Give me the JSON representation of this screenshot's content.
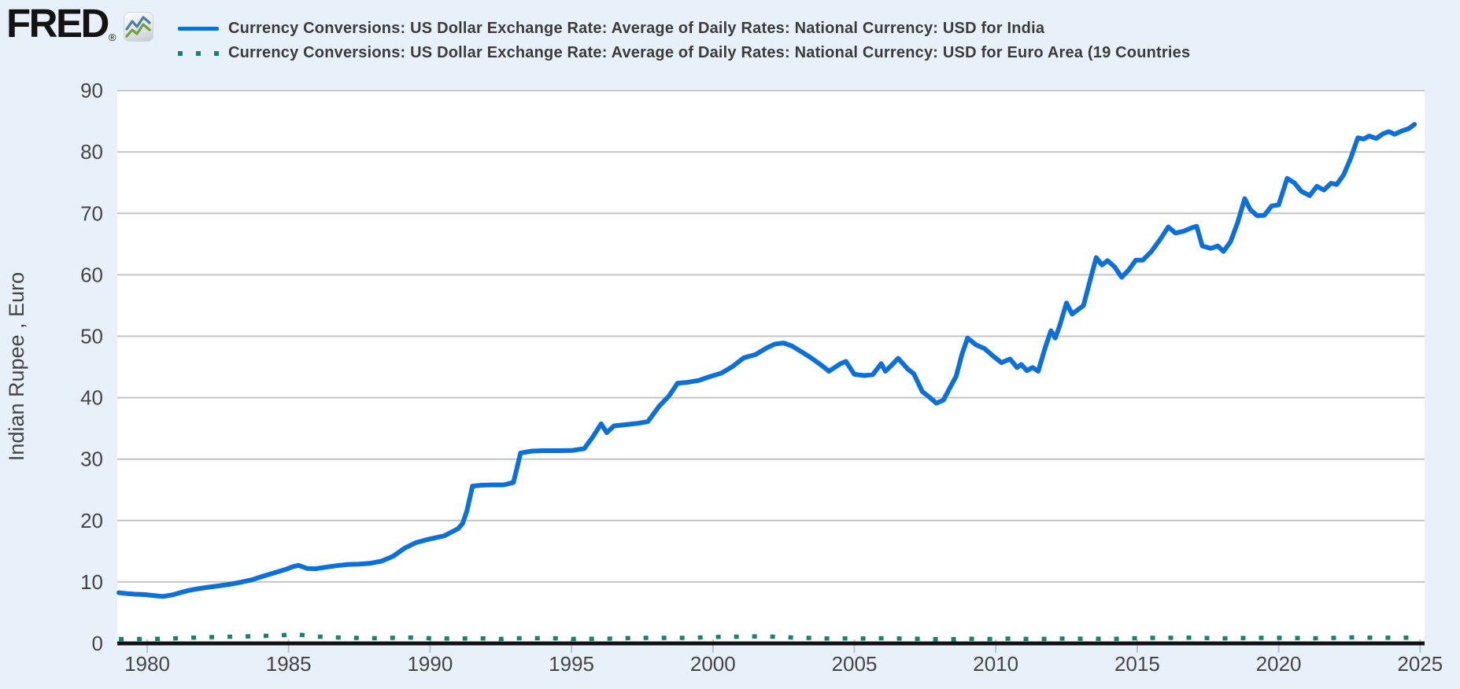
{
  "header": {
    "logo_text": "FRED",
    "registered_mark": "®"
  },
  "legend": {
    "items": [
      {
        "label": "Currency Conversions: US Dollar Exchange Rate: Average of Daily Rates: National Currency: USD for India",
        "color": "#0d6fd8",
        "line_style": "solid"
      },
      {
        "label": "Currency Conversions: US Dollar Exchange Rate: Average of Daily Rates: National Currency: USD for Euro Area (19 Countries",
        "color": "#1e7e72",
        "line_style": "dotted"
      }
    ]
  },
  "colors": {
    "background": "#e8f1f9",
    "plot_background": "#ffffff",
    "gridline": "#c4c4c4",
    "axis_line": "#121212",
    "tick_mark": "#b5c4d6",
    "tick_label": "#454545",
    "legend_text": "#3b3b3b",
    "logo_icon_blue": "#4a80a8",
    "logo_icon_green": "#6fa13d",
    "india_line": "#0d6fd8",
    "euro_line": "#1e7e72"
  },
  "chart_data": {
    "type": "line",
    "title": "",
    "xlabel": "",
    "ylabel": "Indian Rupee , Euro",
    "xlim": [
      1978.9,
      2025.1
    ],
    "ylim": [
      0,
      90
    ],
    "x_ticks": [
      1980,
      1985,
      1990,
      1995,
      2000,
      2005,
      2010,
      2015,
      2020,
      2025
    ],
    "y_ticks": [
      0,
      10,
      20,
      30,
      40,
      50,
      60,
      70,
      80,
      90
    ],
    "grid": true,
    "legend_position": "top-left",
    "series": [
      {
        "name": "USD for India",
        "color": "#0d6fd8",
        "style": "solid",
        "points": [
          [
            1979.0,
            8.25
          ],
          [
            1979.3,
            8.1
          ],
          [
            1979.6,
            8.0
          ],
          [
            1979.9,
            7.95
          ],
          [
            1980.2,
            7.8
          ],
          [
            1980.55,
            7.65
          ],
          [
            1980.9,
            7.9
          ],
          [
            1981.2,
            8.3
          ],
          [
            1981.5,
            8.65
          ],
          [
            1981.8,
            8.9
          ],
          [
            1982.1,
            9.1
          ],
          [
            1982.5,
            9.35
          ],
          [
            1982.9,
            9.6
          ],
          [
            1983.3,
            9.95
          ],
          [
            1983.7,
            10.35
          ],
          [
            1984.1,
            10.95
          ],
          [
            1984.5,
            11.5
          ],
          [
            1984.9,
            12.05
          ],
          [
            1985.15,
            12.5
          ],
          [
            1985.35,
            12.7
          ],
          [
            1985.65,
            12.2
          ],
          [
            1985.95,
            12.15
          ],
          [
            1986.3,
            12.4
          ],
          [
            1986.7,
            12.65
          ],
          [
            1987.1,
            12.85
          ],
          [
            1987.5,
            12.9
          ],
          [
            1987.9,
            13.05
          ],
          [
            1988.3,
            13.4
          ],
          [
            1988.7,
            14.2
          ],
          [
            1989.1,
            15.5
          ],
          [
            1989.5,
            16.4
          ],
          [
            1990.0,
            17.0
          ],
          [
            1990.5,
            17.5
          ],
          [
            1991.0,
            18.7
          ],
          [
            1991.15,
            19.5
          ],
          [
            1991.3,
            21.5
          ],
          [
            1991.5,
            25.6
          ],
          [
            1991.8,
            25.75
          ],
          [
            1992.2,
            25.8
          ],
          [
            1992.6,
            25.8
          ],
          [
            1992.95,
            26.2
          ],
          [
            1993.2,
            31.0
          ],
          [
            1993.6,
            31.3
          ],
          [
            1994.0,
            31.37
          ],
          [
            1994.5,
            31.37
          ],
          [
            1995.0,
            31.4
          ],
          [
            1995.45,
            31.7
          ],
          [
            1995.75,
            33.6
          ],
          [
            1996.05,
            35.75
          ],
          [
            1996.25,
            34.3
          ],
          [
            1996.5,
            35.4
          ],
          [
            1996.9,
            35.6
          ],
          [
            1997.3,
            35.8
          ],
          [
            1997.7,
            36.1
          ],
          [
            1998.1,
            38.6
          ],
          [
            1998.45,
            40.3
          ],
          [
            1998.75,
            42.35
          ],
          [
            1999.1,
            42.5
          ],
          [
            1999.5,
            42.8
          ],
          [
            1999.9,
            43.45
          ],
          [
            2000.3,
            44.0
          ],
          [
            2000.7,
            45.1
          ],
          [
            2001.1,
            46.5
          ],
          [
            2001.5,
            47.0
          ],
          [
            2001.9,
            48.1
          ],
          [
            2002.2,
            48.75
          ],
          [
            2002.5,
            48.9
          ],
          [
            2002.8,
            48.4
          ],
          [
            2003.1,
            47.55
          ],
          [
            2003.45,
            46.55
          ],
          [
            2003.8,
            45.4
          ],
          [
            2004.1,
            44.3
          ],
          [
            2004.5,
            45.5
          ],
          [
            2004.7,
            45.9
          ],
          [
            2005.0,
            43.8
          ],
          [
            2005.35,
            43.6
          ],
          [
            2005.65,
            43.75
          ],
          [
            2005.95,
            45.55
          ],
          [
            2006.1,
            44.3
          ],
          [
            2006.3,
            45.2
          ],
          [
            2006.55,
            46.4
          ],
          [
            2006.9,
            44.6
          ],
          [
            2007.1,
            43.9
          ],
          [
            2007.4,
            41.0
          ],
          [
            2007.65,
            40.1
          ],
          [
            2007.9,
            39.1
          ],
          [
            2008.15,
            39.6
          ],
          [
            2008.4,
            41.8
          ],
          [
            2008.6,
            43.5
          ],
          [
            2008.8,
            47.0
          ],
          [
            2009.0,
            49.7
          ],
          [
            2009.3,
            48.6
          ],
          [
            2009.6,
            48.0
          ],
          [
            2009.9,
            46.8
          ],
          [
            2010.2,
            45.7
          ],
          [
            2010.5,
            46.3
          ],
          [
            2010.75,
            44.9
          ],
          [
            2010.9,
            45.4
          ],
          [
            2011.1,
            44.4
          ],
          [
            2011.3,
            44.9
          ],
          [
            2011.5,
            44.3
          ],
          [
            2011.75,
            48.2
          ],
          [
            2011.95,
            50.9
          ],
          [
            2012.1,
            49.7
          ],
          [
            2012.25,
            51.6
          ],
          [
            2012.5,
            55.4
          ],
          [
            2012.7,
            53.6
          ],
          [
            2012.9,
            54.3
          ],
          [
            2013.1,
            55.0
          ],
          [
            2013.3,
            58.5
          ],
          [
            2013.55,
            62.8
          ],
          [
            2013.75,
            61.6
          ],
          [
            2013.95,
            62.3
          ],
          [
            2014.2,
            61.3
          ],
          [
            2014.45,
            59.6
          ],
          [
            2014.7,
            60.8
          ],
          [
            2014.95,
            62.4
          ],
          [
            2015.2,
            62.4
          ],
          [
            2015.5,
            63.8
          ],
          [
            2015.8,
            65.7
          ],
          [
            2016.1,
            67.8
          ],
          [
            2016.35,
            66.8
          ],
          [
            2016.65,
            67.1
          ],
          [
            2016.95,
            67.7
          ],
          [
            2017.1,
            67.9
          ],
          [
            2017.3,
            64.7
          ],
          [
            2017.6,
            64.3
          ],
          [
            2017.85,
            64.7
          ],
          [
            2018.05,
            63.8
          ],
          [
            2018.3,
            65.4
          ],
          [
            2018.55,
            68.5
          ],
          [
            2018.8,
            72.4
          ],
          [
            2019.0,
            70.6
          ],
          [
            2019.25,
            69.6
          ],
          [
            2019.5,
            69.7
          ],
          [
            2019.75,
            71.2
          ],
          [
            2020.0,
            71.4
          ],
          [
            2020.3,
            75.7
          ],
          [
            2020.55,
            75.0
          ],
          [
            2020.8,
            73.6
          ],
          [
            2021.1,
            72.9
          ],
          [
            2021.35,
            74.4
          ],
          [
            2021.6,
            73.8
          ],
          [
            2021.85,
            74.9
          ],
          [
            2022.05,
            74.7
          ],
          [
            2022.3,
            76.3
          ],
          [
            2022.55,
            79.0
          ],
          [
            2022.8,
            82.3
          ],
          [
            2023.0,
            82.1
          ],
          [
            2023.2,
            82.6
          ],
          [
            2023.45,
            82.2
          ],
          [
            2023.7,
            83.0
          ],
          [
            2023.9,
            83.3
          ],
          [
            2024.1,
            82.9
          ],
          [
            2024.35,
            83.4
          ],
          [
            2024.6,
            83.8
          ],
          [
            2024.8,
            84.5
          ]
        ]
      },
      {
        "name": "USD for Euro Area (19 Countries)",
        "color": "#1e7e72",
        "style": "dotted",
        "points": [
          [
            1979.0,
            0.7
          ],
          [
            1979.5,
            0.72
          ],
          [
            1980.0,
            0.72
          ],
          [
            1980.5,
            0.74
          ],
          [
            1981.0,
            0.82
          ],
          [
            1981.5,
            0.92
          ],
          [
            1982.0,
            0.99
          ],
          [
            1982.5,
            1.04
          ],
          [
            1983.0,
            1.09
          ],
          [
            1983.5,
            1.14
          ],
          [
            1984.0,
            1.19
          ],
          [
            1984.5,
            1.27
          ],
          [
            1985.0,
            1.4
          ],
          [
            1985.25,
            1.47
          ],
          [
            1985.6,
            1.3
          ],
          [
            1986.0,
            1.1
          ],
          [
            1986.5,
            1.01
          ],
          [
            1987.0,
            0.92
          ],
          [
            1987.5,
            0.88
          ],
          [
            1988.0,
            0.84
          ],
          [
            1988.5,
            0.88
          ],
          [
            1989.0,
            0.93
          ],
          [
            1989.5,
            0.95
          ],
          [
            1990.0,
            0.83
          ],
          [
            1990.5,
            0.79
          ],
          [
            1991.0,
            0.77
          ],
          [
            1991.5,
            0.84
          ],
          [
            1992.0,
            0.79
          ],
          [
            1992.5,
            0.72
          ],
          [
            1993.0,
            0.83
          ],
          [
            1993.5,
            0.86
          ],
          [
            1994.0,
            0.85
          ],
          [
            1994.5,
            0.82
          ],
          [
            1995.0,
            0.73
          ],
          [
            1995.5,
            0.72
          ],
          [
            1996.0,
            0.77
          ],
          [
            1996.5,
            0.78
          ],
          [
            1997.0,
            0.86
          ],
          [
            1997.5,
            0.9
          ],
          [
            1998.0,
            0.9
          ],
          [
            1998.5,
            0.89
          ],
          [
            1999.0,
            0.89
          ],
          [
            1999.5,
            0.95
          ],
          [
            2000.0,
            1.02
          ],
          [
            2000.5,
            1.09
          ],
          [
            2001.0,
            1.08
          ],
          [
            2001.5,
            1.14
          ],
          [
            2002.0,
            1.12
          ],
          [
            2002.5,
            1.0
          ],
          [
            2003.0,
            0.92
          ],
          [
            2003.5,
            0.87
          ],
          [
            2004.0,
            0.8
          ],
          [
            2004.5,
            0.82
          ],
          [
            2005.0,
            0.77
          ],
          [
            2005.5,
            0.81
          ],
          [
            2006.0,
            0.83
          ],
          [
            2006.5,
            0.79
          ],
          [
            2007.0,
            0.76
          ],
          [
            2007.5,
            0.72
          ],
          [
            2008.0,
            0.67
          ],
          [
            2008.5,
            0.66
          ],
          [
            2008.8,
            0.75
          ],
          [
            2009.0,
            0.76
          ],
          [
            2009.5,
            0.71
          ],
          [
            2010.0,
            0.73
          ],
          [
            2010.5,
            0.78
          ],
          [
            2011.0,
            0.73
          ],
          [
            2011.5,
            0.7
          ],
          [
            2012.0,
            0.77
          ],
          [
            2012.5,
            0.8
          ],
          [
            2013.0,
            0.76
          ],
          [
            2013.5,
            0.76
          ],
          [
            2014.0,
            0.73
          ],
          [
            2014.5,
            0.75
          ],
          [
            2015.0,
            0.86
          ],
          [
            2015.5,
            0.9
          ],
          [
            2016.0,
            0.91
          ],
          [
            2016.5,
            0.9
          ],
          [
            2017.0,
            0.94
          ],
          [
            2017.5,
            0.87
          ],
          [
            2018.0,
            0.82
          ],
          [
            2018.5,
            0.86
          ],
          [
            2019.0,
            0.88
          ],
          [
            2019.5,
            0.89
          ],
          [
            2020.0,
            0.9
          ],
          [
            2020.5,
            0.88
          ],
          [
            2021.0,
            0.83
          ],
          [
            2021.5,
            0.85
          ],
          [
            2022.0,
            0.89
          ],
          [
            2022.5,
            0.96
          ],
          [
            2022.8,
            1.0
          ],
          [
            2023.1,
            0.93
          ],
          [
            2023.5,
            0.91
          ],
          [
            2024.0,
            0.92
          ],
          [
            2024.4,
            0.93
          ],
          [
            2024.8,
            0.91
          ]
        ]
      }
    ]
  }
}
